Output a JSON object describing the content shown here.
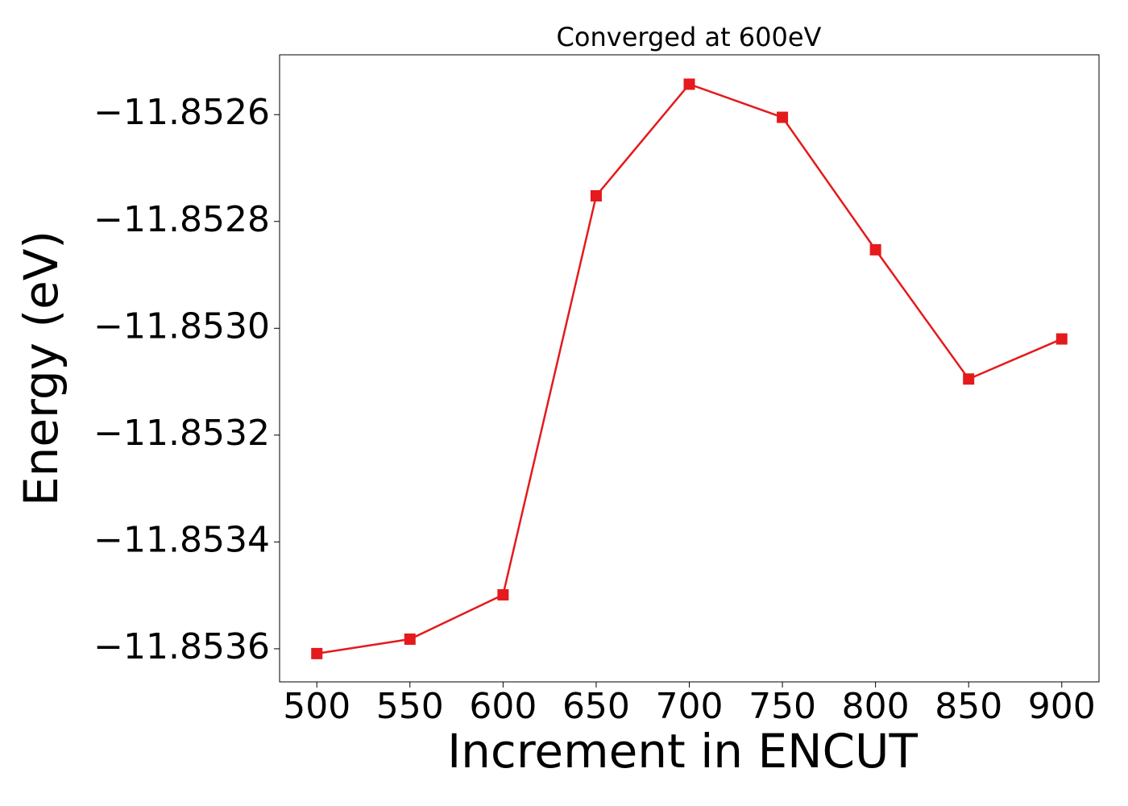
{
  "chart_data": {
    "type": "line",
    "title": "Converged at 600eV",
    "x_label": "Increment in ENCUT",
    "y_label": "Energy (eV)",
    "x": [
      500,
      550,
      600,
      650,
      700,
      750,
      800,
      850,
      900
    ],
    "series": [
      {
        "name": "Energy",
        "color": "#e41a1c",
        "values": [
          -11.853609,
          -11.853582,
          -11.853499,
          -11.852752,
          -11.852543,
          -11.852605,
          -11.852853,
          -11.853095,
          -11.85302
        ]
      }
    ],
    "xlim": [
      480,
      920
    ],
    "xticks": [
      500,
      550,
      600,
      650,
      700,
      750,
      800,
      850,
      900
    ],
    "ylim": [
      -11.853662,
      -11.852488
    ],
    "yticks": [
      {
        "value": -11.8536,
        "label": "−11.8536"
      },
      {
        "value": -11.8534,
        "label": "−11.8534"
      },
      {
        "value": -11.8532,
        "label": "−11.8532"
      },
      {
        "value": -11.853,
        "label": "−11.8530"
      },
      {
        "value": -11.8528,
        "label": "−11.8528"
      },
      {
        "value": -11.8526,
        "label": "−11.8526"
      }
    ],
    "grid": false
  }
}
